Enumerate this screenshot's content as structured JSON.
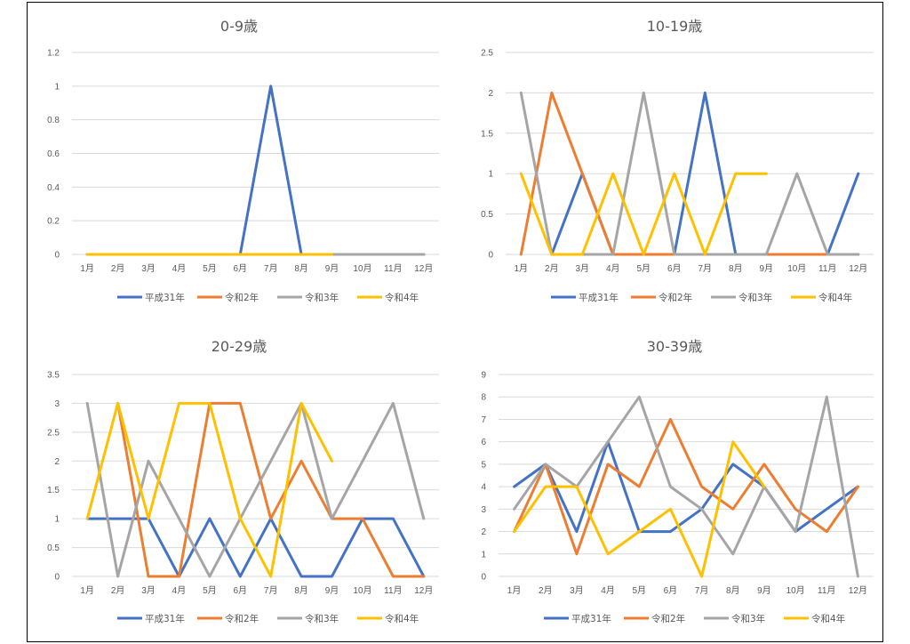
{
  "colors": {
    "平成31年": "#4472c4",
    "令和2年": "#ed7d31",
    "令和3年": "#a5a5a5",
    "令和4年": "#ffc000"
  },
  "months": [
    "1月",
    "2月",
    "3月",
    "4月",
    "5月",
    "6月",
    "7月",
    "8月",
    "9月",
    "10月",
    "11月",
    "12月"
  ],
  "chart_data": [
    {
      "type": "line",
      "title": "0-9歳",
      "legend": "bottom",
      "grid": true,
      "ylim": [
        0,
        1.2
      ],
      "yticks": [
        "0",
        "0.2",
        "0.4",
        "0.6",
        "0.8",
        "1",
        "1.2"
      ],
      "series": [
        {
          "name": "平成31年",
          "values": [
            0,
            0,
            0,
            0,
            0,
            0,
            1,
            0,
            0,
            0,
            0,
            0
          ]
        },
        {
          "name": "令和2年",
          "values": [
            0,
            0,
            0,
            0,
            0,
            0,
            0,
            0,
            0,
            0,
            0,
            0
          ]
        },
        {
          "name": "令和3年",
          "values": [
            0,
            0,
            0,
            0,
            0,
            0,
            0,
            0,
            0,
            0,
            0,
            0
          ]
        },
        {
          "name": "令和4年",
          "values": [
            0,
            0,
            0,
            0,
            0,
            0,
            0,
            0,
            0,
            null,
            null,
            null
          ]
        }
      ]
    },
    {
      "type": "line",
      "title": "10-19歳",
      "legend": "bottom",
      "grid": true,
      "ylim": [
        0,
        2.5
      ],
      "yticks": [
        "0",
        "0.5",
        "1",
        "1.5",
        "2",
        "2.5"
      ],
      "series": [
        {
          "name": "平成31年",
          "values": [
            null,
            0,
            1,
            0,
            0,
            0,
            2,
            0,
            0,
            0,
            0,
            1
          ]
        },
        {
          "name": "令和2年",
          "values": [
            0,
            2,
            1,
            0,
            0,
            0,
            0,
            0,
            0,
            0,
            0,
            0
          ]
        },
        {
          "name": "令和3年",
          "values": [
            2,
            0,
            0,
            0,
            2,
            0,
            0,
            0,
            0,
            1,
            0,
            0
          ]
        },
        {
          "name": "令和4年",
          "values": [
            1,
            0,
            0,
            1,
            0,
            1,
            0,
            1,
            1,
            null,
            null,
            null
          ]
        }
      ]
    },
    {
      "type": "line",
      "title": "20-29歳",
      "legend": "bottom",
      "grid": true,
      "ylim": [
        0,
        3.5
      ],
      "yticks": [
        "0",
        "0.5",
        "1",
        "1.5",
        "2",
        "2.5",
        "3",
        "3.5"
      ],
      "series": [
        {
          "name": "平成31年",
          "values": [
            1,
            1,
            1,
            0,
            1,
            0,
            1,
            0,
            0,
            1,
            1,
            0
          ]
        },
        {
          "name": "令和2年",
          "values": [
            null,
            3,
            0,
            0,
            3,
            3,
            1,
            2,
            1,
            1,
            0,
            0
          ]
        },
        {
          "name": "令和3年",
          "values": [
            3,
            0,
            2,
            1,
            0,
            1,
            2,
            3,
            1,
            2,
            3,
            1
          ]
        },
        {
          "name": "令和4年",
          "values": [
            1,
            3,
            1,
            3,
            3,
            1,
            0,
            3,
            2,
            null,
            null,
            null
          ]
        }
      ]
    },
    {
      "type": "line",
      "title": "30-39歳",
      "legend": "bottom",
      "grid": true,
      "ylim": [
        0,
        9
      ],
      "yticks": [
        "0",
        "1",
        "2",
        "3",
        "4",
        "5",
        "6",
        "7",
        "8",
        "9"
      ],
      "series": [
        {
          "name": "平成31年",
          "values": [
            4,
            5,
            2,
            6,
            2,
            2,
            3,
            5,
            4,
            2,
            3,
            4
          ]
        },
        {
          "name": "令和2年",
          "values": [
            2,
            5,
            1,
            5,
            4,
            7,
            4,
            3,
            5,
            3,
            2,
            4
          ]
        },
        {
          "name": "令和3年",
          "values": [
            3,
            5,
            4,
            6,
            8,
            4,
            3,
            1,
            4,
            2,
            8,
            0
          ]
        },
        {
          "name": "令和4年",
          "values": [
            2,
            4,
            4,
            1,
            2,
            3,
            0,
            6,
            4,
            null,
            null,
            null
          ]
        }
      ]
    }
  ]
}
